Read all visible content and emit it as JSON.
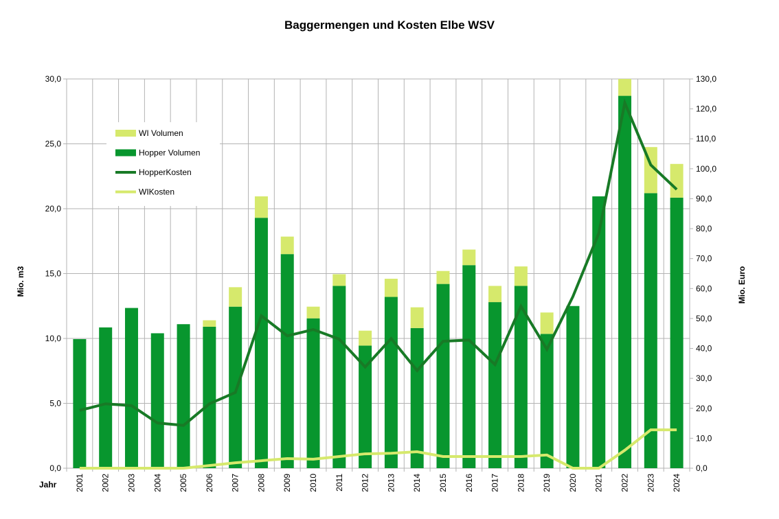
{
  "chart_data": {
    "type": "bar",
    "title": "Baggermengen und Kosten Elbe WSV",
    "xlabel": "Jahr",
    "ylabel": "Mio. m3",
    "y2label": "Mio. Euro",
    "ylim": [
      0,
      30
    ],
    "y2lim": [
      0,
      130
    ],
    "yticks": [
      "0,0",
      "5,0",
      "10,0",
      "15,0",
      "20,0",
      "25,0",
      "30,0"
    ],
    "y2ticks": [
      "0,0",
      "10,0",
      "20,0",
      "30,0",
      "40,0",
      "50,0",
      "60,0",
      "70,0",
      "80,0",
      "90,0",
      "100,0",
      "110,0",
      "120,0",
      "130,0"
    ],
    "grid": true,
    "legend_position": "top-left",
    "categories": [
      "2001",
      "2002",
      "2003",
      "2004",
      "2005",
      "2006",
      "2007",
      "2008",
      "2009",
      "2010",
      "2011",
      "2012",
      "2013",
      "2014",
      "2015",
      "2016",
      "2017",
      "2018",
      "2019",
      "2020",
      "2021",
      "2022",
      "2023",
      "2024"
    ],
    "series": [
      {
        "name": "Hopper Volumen",
        "type": "stacked-bar",
        "axis": "left",
        "color": "#08962e",
        "values": [
          9.95,
          10.85,
          12.35,
          10.4,
          11.1,
          10.9,
          12.45,
          19.3,
          16.5,
          11.55,
          14.05,
          9.45,
          13.2,
          10.8,
          14.2,
          15.65,
          12.8,
          14.05,
          10.35,
          12.5,
          20.95,
          28.7,
          21.2,
          20.85
        ]
      },
      {
        "name": "WI Volumen",
        "type": "stacked-bar",
        "axis": "left",
        "color": "#d6e96c",
        "values": [
          0,
          0,
          0,
          0,
          0,
          0.5,
          1.5,
          1.65,
          1.35,
          0.9,
          0.9,
          1.15,
          1.4,
          1.6,
          1.0,
          1.2,
          1.25,
          1.5,
          1.65,
          0,
          0,
          1.3,
          3.55,
          2.6
        ]
      },
      {
        "name": "HopperKosten",
        "type": "line",
        "axis": "right",
        "color": "#187a26",
        "values": [
          19.3,
          21.5,
          20.9,
          15.1,
          14.3,
          21.5,
          25.3,
          50.9,
          44.2,
          46.3,
          43.1,
          33.8,
          43.3,
          32.6,
          42.4,
          42.8,
          34.6,
          54.1,
          39.7,
          57.3,
          78.5,
          122.0,
          101.3,
          93.1
        ]
      },
      {
        "name": "WIKosten",
        "type": "line",
        "axis": "right",
        "color": "#d6e96c",
        "values": [
          0,
          0,
          0,
          0,
          0,
          0.9,
          1.8,
          2.5,
          3.2,
          3.0,
          3.9,
          4.8,
          5.0,
          5.5,
          3.9,
          3.9,
          3.9,
          3.9,
          4.4,
          0,
          0,
          6.0,
          12.8,
          12.8
        ]
      }
    ]
  }
}
